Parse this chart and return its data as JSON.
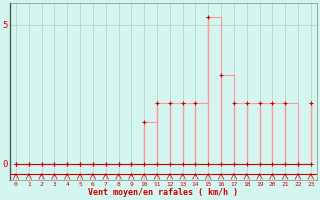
{
  "xlabel": "Vent moyen/en rafales ( km/h )",
  "background_color": "#d4f5f0",
  "grid_color": "#b0ccc8",
  "line_color_dark": "#cc0000",
  "line_color_light": "#ff9999",
  "hours": [
    0,
    1,
    2,
    3,
    4,
    5,
    6,
    7,
    8,
    9,
    10,
    11,
    12,
    13,
    14,
    15,
    16,
    17,
    18,
    19,
    20,
    21,
    22,
    23
  ],
  "wind_gust": [
    0,
    0,
    0,
    0,
    0,
    0,
    0,
    0,
    0,
    0,
    1.5,
    2.2,
    2.2,
    2.2,
    2.2,
    5.3,
    3.2,
    2.2,
    2.2,
    2.2,
    2.2,
    2.2,
    0,
    2.2
  ],
  "wind_avg": [
    0,
    0,
    0,
    0,
    0,
    0,
    0,
    0,
    0,
    0,
    0,
    0,
    0,
    0,
    0,
    0,
    0,
    0,
    0,
    0,
    0,
    0,
    0,
    0
  ],
  "ylim": [
    -0.6,
    5.8
  ],
  "yticks": [
    0,
    5
  ],
  "xlim": [
    -0.5,
    23.5
  ]
}
